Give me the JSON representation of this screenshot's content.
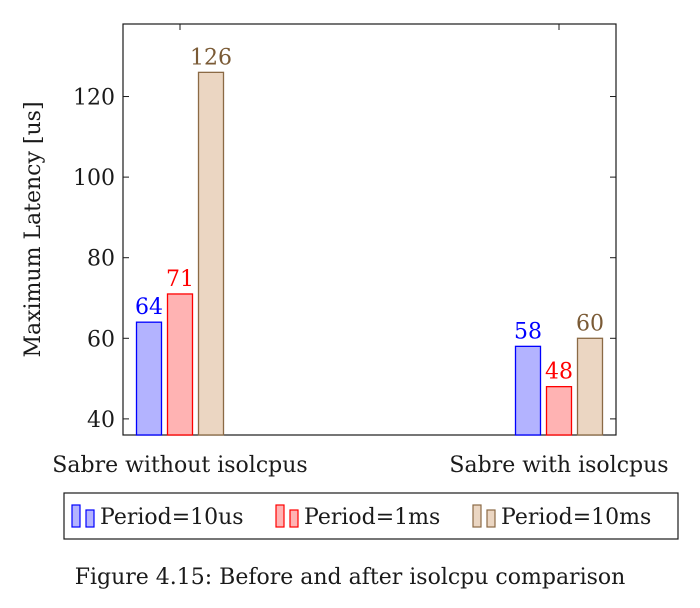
{
  "caption": "Figure 4.15: Before and after isolcpu comparison",
  "chart_data": {
    "type": "bar",
    "categories": [
      "Sabre without isolcpus",
      "Sabre with isolcpus"
    ],
    "series": [
      {
        "name": "Period=10us",
        "values": [
          64,
          58
        ],
        "fill": "#b3b3ff",
        "stroke": "#0000ff",
        "label_color": "#0000ff"
      },
      {
        "name": "Period=1ms",
        "values": [
          71,
          48
        ],
        "fill": "#ffb3b3",
        "stroke": "#ff0000",
        "label_color": "#ff0000"
      },
      {
        "name": "Period=10ms",
        "values": [
          126,
          60
        ],
        "fill": "#ebd6c2",
        "stroke": "#8b6a45",
        "label_color": "#7a5a35"
      }
    ],
    "ylabel": "Maximum Latency [us]",
    "xlabel": "",
    "title": "",
    "ylim": [
      36,
      138
    ],
    "yticks": [
      40,
      60,
      80,
      100,
      120
    ],
    "legend_position": "bottom-center",
    "grid": false
  }
}
